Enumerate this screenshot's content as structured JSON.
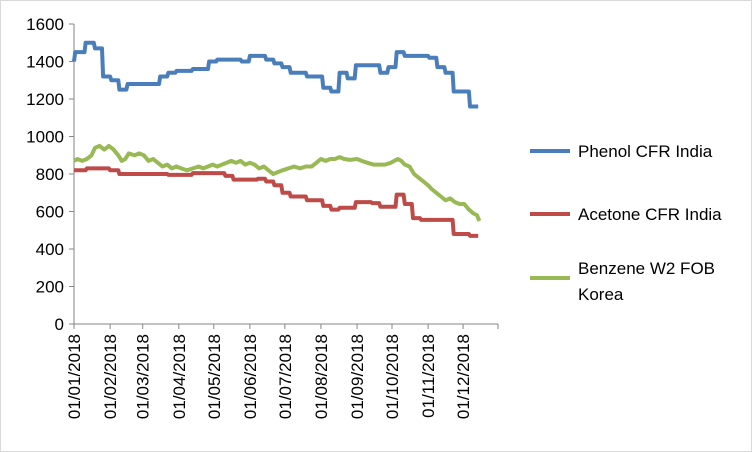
{
  "chart_data": {
    "type": "line",
    "title": "",
    "xlabel": "",
    "ylabel": "",
    "ylim": [
      0,
      1600
    ],
    "yticks": [
      0,
      200,
      400,
      600,
      800,
      1000,
      1200,
      1400,
      1600
    ],
    "xlim": [
      "2018-01-01",
      "2018-12-31"
    ],
    "xtick_labels": [
      "01/01/2018",
      "01/02/2018",
      "01/03/2018",
      "01/04/2018",
      "01/05/2018",
      "01/06/2018",
      "01/07/2018",
      "01/08/2018",
      "01/09/2018",
      "01/10/2018",
      "01/11/2018",
      "01/12/2018"
    ],
    "xtick_dates": [
      "2018-01-01",
      "2018-02-01",
      "2018-03-01",
      "2018-04-01",
      "2018-05-01",
      "2018-06-01",
      "2018-07-01",
      "2018-08-01",
      "2018-09-01",
      "2018-10-01",
      "2018-11-01",
      "2018-12-01"
    ],
    "grid": false,
    "legend_position": "right",
    "series": [
      {
        "name": "Phenol CFR India",
        "color": "#4a7ebb",
        "points": [
          [
            "2018-01-01",
            1400
          ],
          [
            "2018-01-02",
            1450
          ],
          [
            "2018-01-10",
            1450
          ],
          [
            "2018-01-11",
            1500
          ],
          [
            "2018-01-18",
            1500
          ],
          [
            "2018-01-19",
            1470
          ],
          [
            "2018-01-25",
            1470
          ],
          [
            "2018-01-26",
            1320
          ],
          [
            "2018-02-01",
            1320
          ],
          [
            "2018-02-02",
            1300
          ],
          [
            "2018-02-08",
            1300
          ],
          [
            "2018-02-09",
            1250
          ],
          [
            "2018-02-15",
            1250
          ],
          [
            "2018-02-16",
            1280
          ],
          [
            "2018-03-15",
            1280
          ],
          [
            "2018-03-16",
            1320
          ],
          [
            "2018-03-22",
            1320
          ],
          [
            "2018-03-23",
            1340
          ],
          [
            "2018-03-29",
            1340
          ],
          [
            "2018-03-30",
            1350
          ],
          [
            "2018-04-12",
            1350
          ],
          [
            "2018-04-13",
            1360
          ],
          [
            "2018-04-26",
            1360
          ],
          [
            "2018-04-27",
            1400
          ],
          [
            "2018-05-03",
            1400
          ],
          [
            "2018-05-04",
            1410
          ],
          [
            "2018-05-24",
            1410
          ],
          [
            "2018-05-25",
            1400
          ],
          [
            "2018-05-31",
            1400
          ],
          [
            "2018-06-01",
            1430
          ],
          [
            "2018-06-14",
            1430
          ],
          [
            "2018-06-15",
            1410
          ],
          [
            "2018-06-21",
            1410
          ],
          [
            "2018-06-22",
            1390
          ],
          [
            "2018-06-28",
            1390
          ],
          [
            "2018-06-29",
            1370
          ],
          [
            "2018-07-05",
            1370
          ],
          [
            "2018-07-06",
            1340
          ],
          [
            "2018-07-19",
            1340
          ],
          [
            "2018-07-20",
            1320
          ],
          [
            "2018-08-02",
            1320
          ],
          [
            "2018-08-03",
            1260
          ],
          [
            "2018-08-09",
            1260
          ],
          [
            "2018-08-10",
            1240
          ],
          [
            "2018-08-16",
            1240
          ],
          [
            "2018-08-17",
            1340
          ],
          [
            "2018-08-23",
            1340
          ],
          [
            "2018-08-24",
            1310
          ],
          [
            "2018-08-30",
            1310
          ],
          [
            "2018-08-31",
            1380
          ],
          [
            "2018-09-20",
            1380
          ],
          [
            "2018-09-21",
            1340
          ],
          [
            "2018-09-27",
            1340
          ],
          [
            "2018-09-28",
            1370
          ],
          [
            "2018-10-04",
            1370
          ],
          [
            "2018-10-05",
            1450
          ],
          [
            "2018-10-11",
            1450
          ],
          [
            "2018-10-12",
            1430
          ],
          [
            "2018-11-01",
            1430
          ],
          [
            "2018-11-02",
            1420
          ],
          [
            "2018-11-08",
            1420
          ],
          [
            "2018-11-09",
            1370
          ],
          [
            "2018-11-15",
            1370
          ],
          [
            "2018-11-16",
            1340
          ],
          [
            "2018-11-22",
            1340
          ],
          [
            "2018-11-23",
            1240
          ],
          [
            "2018-12-06",
            1240
          ],
          [
            "2018-12-07",
            1160
          ],
          [
            "2018-12-14",
            1160
          ]
        ]
      },
      {
        "name": "Acetone CFR India",
        "color": "#be4b48",
        "points": [
          [
            "2018-01-01",
            820
          ],
          [
            "2018-01-11",
            820
          ],
          [
            "2018-01-12",
            830
          ],
          [
            "2018-01-31",
            830
          ],
          [
            "2018-02-01",
            820
          ],
          [
            "2018-02-08",
            820
          ],
          [
            "2018-02-09",
            800
          ],
          [
            "2018-03-22",
            800
          ],
          [
            "2018-03-23",
            795
          ],
          [
            "2018-04-12",
            795
          ],
          [
            "2018-04-13",
            805
          ],
          [
            "2018-05-10",
            805
          ],
          [
            "2018-05-11",
            790
          ],
          [
            "2018-05-17",
            790
          ],
          [
            "2018-05-18",
            770
          ],
          [
            "2018-06-07",
            770
          ],
          [
            "2018-06-08",
            775
          ],
          [
            "2018-06-14",
            775
          ],
          [
            "2018-06-15",
            760
          ],
          [
            "2018-06-21",
            760
          ],
          [
            "2018-06-22",
            740
          ],
          [
            "2018-06-28",
            740
          ],
          [
            "2018-06-29",
            700
          ],
          [
            "2018-07-05",
            700
          ],
          [
            "2018-07-06",
            680
          ],
          [
            "2018-07-19",
            680
          ],
          [
            "2018-07-20",
            660
          ],
          [
            "2018-08-02",
            660
          ],
          [
            "2018-08-03",
            630
          ],
          [
            "2018-08-09",
            630
          ],
          [
            "2018-08-10",
            610
          ],
          [
            "2018-08-16",
            610
          ],
          [
            "2018-08-17",
            620
          ],
          [
            "2018-08-30",
            620
          ],
          [
            "2018-08-31",
            650
          ],
          [
            "2018-09-13",
            650
          ],
          [
            "2018-09-14",
            645
          ],
          [
            "2018-09-20",
            645
          ],
          [
            "2018-09-21",
            625
          ],
          [
            "2018-10-04",
            625
          ],
          [
            "2018-10-05",
            690
          ],
          [
            "2018-10-11",
            690
          ],
          [
            "2018-10-12",
            640
          ],
          [
            "2018-10-18",
            640
          ],
          [
            "2018-10-19",
            565
          ],
          [
            "2018-10-25",
            565
          ],
          [
            "2018-10-26",
            555
          ],
          [
            "2018-11-22",
            555
          ],
          [
            "2018-11-23",
            480
          ],
          [
            "2018-12-06",
            480
          ],
          [
            "2018-12-07",
            470
          ],
          [
            "2018-12-14",
            470
          ]
        ]
      },
      {
        "name": "Benzene W2 FOB Korea",
        "color": "#98b954",
        "points": [
          [
            "2018-01-01",
            870
          ],
          [
            "2018-01-04",
            880
          ],
          [
            "2018-01-08",
            870
          ],
          [
            "2018-01-12",
            880
          ],
          [
            "2018-01-16",
            900
          ],
          [
            "2018-01-19",
            940
          ],
          [
            "2018-01-23",
            950
          ],
          [
            "2018-01-27",
            930
          ],
          [
            "2018-01-31",
            950
          ],
          [
            "2018-02-04",
            930
          ],
          [
            "2018-02-08",
            900
          ],
          [
            "2018-02-11",
            870
          ],
          [
            "2018-02-14",
            880
          ],
          [
            "2018-02-17",
            910
          ],
          [
            "2018-02-22",
            900
          ],
          [
            "2018-02-26",
            910
          ],
          [
            "2018-03-02",
            900
          ],
          [
            "2018-03-06",
            870
          ],
          [
            "2018-03-10",
            880
          ],
          [
            "2018-03-14",
            860
          ],
          [
            "2018-03-18",
            840
          ],
          [
            "2018-03-22",
            850
          ],
          [
            "2018-03-26",
            830
          ],
          [
            "2018-03-30",
            840
          ],
          [
            "2018-04-03",
            830
          ],
          [
            "2018-04-08",
            820
          ],
          [
            "2018-04-13",
            830
          ],
          [
            "2018-04-18",
            840
          ],
          [
            "2018-04-22",
            830
          ],
          [
            "2018-04-26",
            840
          ],
          [
            "2018-04-30",
            850
          ],
          [
            "2018-05-04",
            840
          ],
          [
            "2018-05-08",
            850
          ],
          [
            "2018-05-12",
            860
          ],
          [
            "2018-05-16",
            870
          ],
          [
            "2018-05-20",
            860
          ],
          [
            "2018-05-24",
            870
          ],
          [
            "2018-05-28",
            850
          ],
          [
            "2018-06-01",
            860
          ],
          [
            "2018-06-05",
            850
          ],
          [
            "2018-06-09",
            830
          ],
          [
            "2018-06-13",
            840
          ],
          [
            "2018-06-17",
            820
          ],
          [
            "2018-06-21",
            800
          ],
          [
            "2018-06-25",
            810
          ],
          [
            "2018-06-29",
            820
          ],
          [
            "2018-07-04",
            830
          ],
          [
            "2018-07-09",
            840
          ],
          [
            "2018-07-14",
            830
          ],
          [
            "2018-07-19",
            840
          ],
          [
            "2018-07-24",
            840
          ],
          [
            "2018-07-28",
            860
          ],
          [
            "2018-08-01",
            880
          ],
          [
            "2018-08-05",
            870
          ],
          [
            "2018-08-09",
            880
          ],
          [
            "2018-08-13",
            880
          ],
          [
            "2018-08-17",
            890
          ],
          [
            "2018-08-21",
            880
          ],
          [
            "2018-08-26",
            875
          ],
          [
            "2018-09-01",
            880
          ],
          [
            "2018-09-05",
            870
          ],
          [
            "2018-09-10",
            860
          ],
          [
            "2018-09-15",
            850
          ],
          [
            "2018-09-20",
            850
          ],
          [
            "2018-09-25",
            850
          ],
          [
            "2018-09-30",
            860
          ],
          [
            "2018-10-03",
            870
          ],
          [
            "2018-10-06",
            880
          ],
          [
            "2018-10-09",
            870
          ],
          [
            "2018-10-12",
            850
          ],
          [
            "2018-10-16",
            840
          ],
          [
            "2018-10-20",
            800
          ],
          [
            "2018-10-24",
            780
          ],
          [
            "2018-10-28",
            760
          ],
          [
            "2018-11-01",
            740
          ],
          [
            "2018-11-04",
            720
          ],
          [
            "2018-11-08",
            700
          ],
          [
            "2018-11-12",
            680
          ],
          [
            "2018-11-16",
            660
          ],
          [
            "2018-11-20",
            670
          ],
          [
            "2018-11-24",
            650
          ],
          [
            "2018-11-28",
            640
          ],
          [
            "2018-12-02",
            640
          ],
          [
            "2018-12-06",
            610
          ],
          [
            "2018-12-10",
            590
          ],
          [
            "2018-12-13",
            580
          ],
          [
            "2018-12-15",
            550
          ]
        ]
      }
    ]
  }
}
